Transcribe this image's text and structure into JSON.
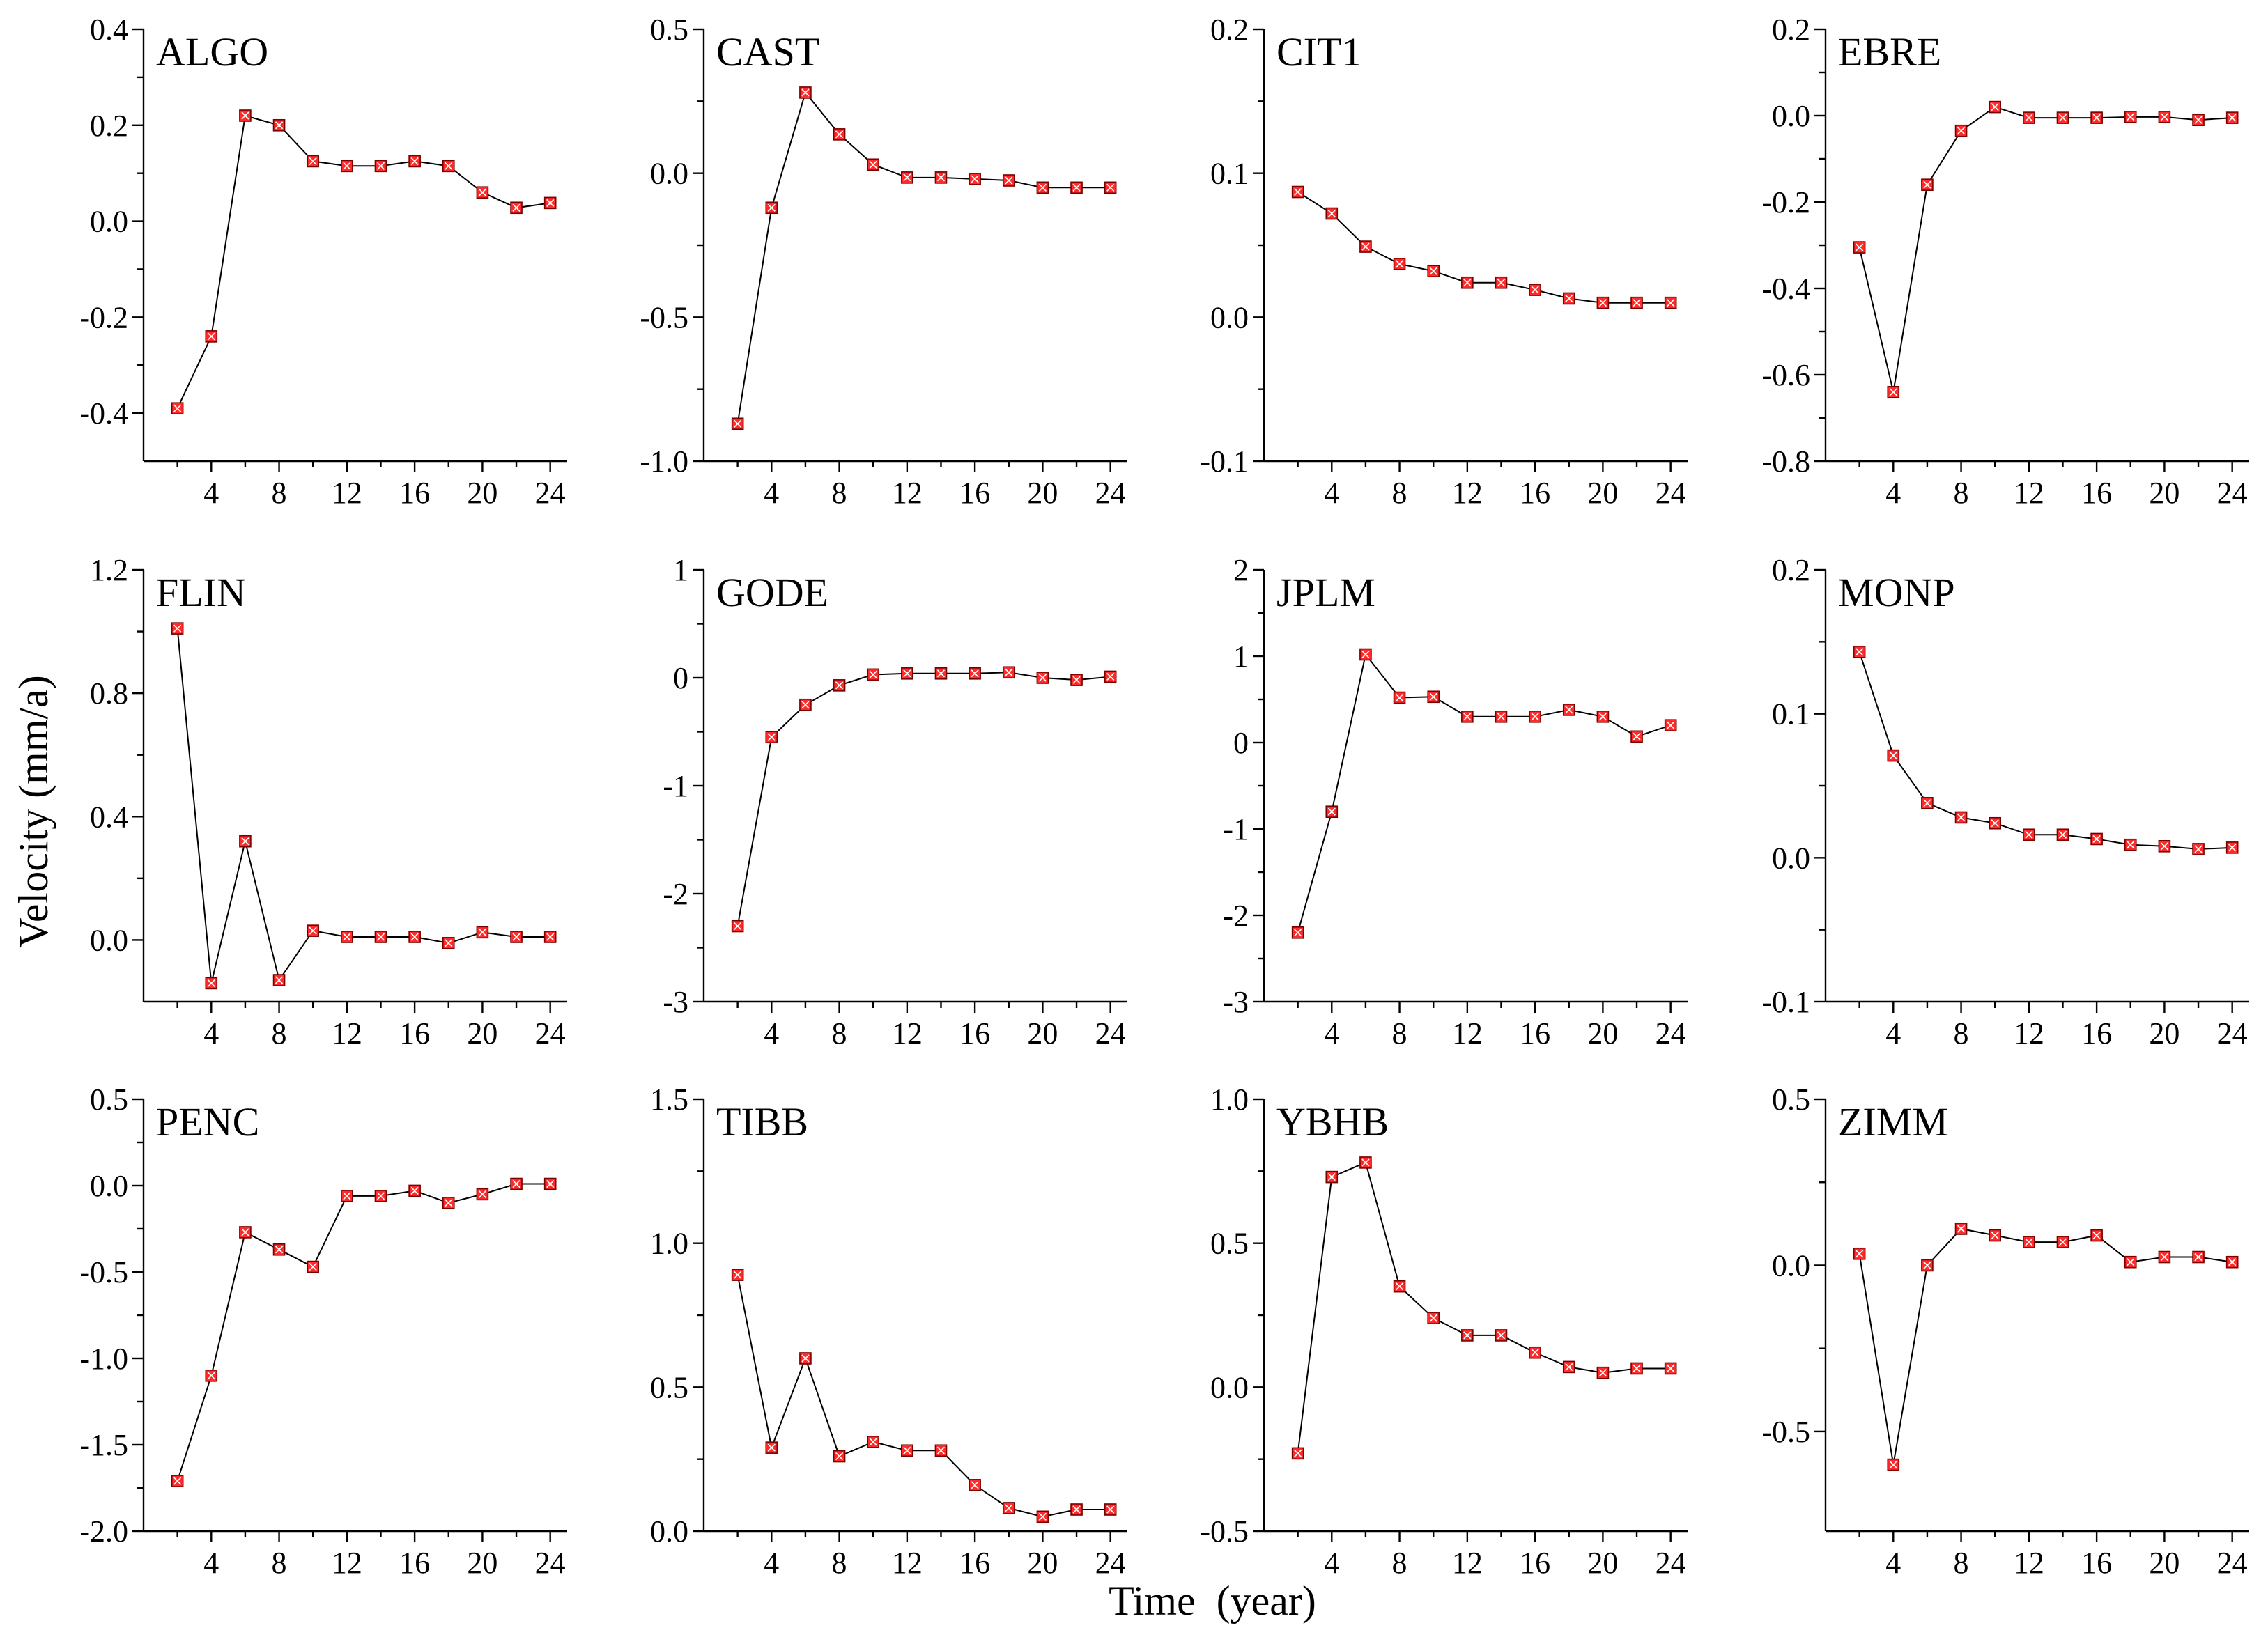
{
  "figure": {
    "ylabel": "Velocity (mm/a)",
    "xlabel": "Time  (year)"
  },
  "chart_data": [
    {
      "type": "line",
      "title": "ALGO",
      "x": [
        2,
        4,
        6,
        8,
        10,
        12,
        14,
        16,
        18,
        20,
        22,
        24
      ],
      "values": [
        -0.39,
        -0.24,
        0.22,
        0.2,
        0.125,
        0.115,
        0.115,
        0.125,
        0.115,
        0.06,
        0.028,
        0.038
      ],
      "ylim": [
        -0.5,
        0.4
      ],
      "yticks": [
        -0.4,
        -0.2,
        0.0,
        0.2,
        0.4
      ],
      "ytick_labels": [
        "-0.4",
        "-0.2",
        "0.0",
        "0.2",
        "0.4"
      ],
      "xlim": [
        0,
        25
      ],
      "xticks": [
        4,
        8,
        12,
        16,
        20,
        24
      ],
      "xtick_labels": [
        "4",
        "8",
        "12",
        "16",
        "20",
        "24"
      ]
    },
    {
      "type": "line",
      "title": "CAST",
      "x": [
        2,
        4,
        6,
        8,
        10,
        12,
        14,
        16,
        18,
        20,
        22,
        24
      ],
      "values": [
        -0.87,
        -0.12,
        0.28,
        0.135,
        0.03,
        -0.015,
        -0.015,
        -0.02,
        -0.025,
        -0.05,
        -0.05,
        -0.05
      ],
      "ylim": [
        -1.0,
        0.5
      ],
      "yticks": [
        -1.0,
        -0.5,
        0.0,
        0.5
      ],
      "ytick_labels": [
        "-1.0",
        "-0.5",
        "0.0",
        "0.5"
      ],
      "xlim": [
        0,
        25
      ],
      "xticks": [
        4,
        8,
        12,
        16,
        20,
        24
      ],
      "xtick_labels": [
        "4",
        "8",
        "12",
        "16",
        "20",
        "24"
      ]
    },
    {
      "type": "line",
      "title": "CIT1",
      "x": [
        2,
        4,
        6,
        8,
        10,
        12,
        14,
        16,
        18,
        20,
        22,
        24
      ],
      "values": [
        0.087,
        0.072,
        0.049,
        0.037,
        0.032,
        0.024,
        0.024,
        0.019,
        0.013,
        0.01,
        0.01,
        0.01
      ],
      "ylim": [
        -0.1,
        0.2
      ],
      "yticks": [
        -0.1,
        0.0,
        0.1,
        0.2
      ],
      "ytick_labels": [
        "-0.1",
        "0.0",
        "0.1",
        "0.2"
      ],
      "xlim": [
        0,
        25
      ],
      "xticks": [
        4,
        8,
        12,
        16,
        20,
        24
      ],
      "xtick_labels": [
        "4",
        "8",
        "12",
        "16",
        "20",
        "24"
      ]
    },
    {
      "type": "line",
      "title": "EBRE",
      "x": [
        2,
        4,
        6,
        8,
        10,
        12,
        14,
        16,
        18,
        20,
        22,
        24
      ],
      "values": [
        -0.305,
        -0.64,
        -0.16,
        -0.035,
        0.02,
        -0.005,
        -0.005,
        -0.005,
        -0.003,
        -0.003,
        -0.01,
        -0.005
      ],
      "ylim": [
        -0.8,
        0.2
      ],
      "yticks": [
        -0.8,
        -0.6,
        -0.4,
        -0.2,
        0.0,
        0.2
      ],
      "ytick_labels": [
        "-0.8",
        "-0.6",
        "-0.4",
        "-0.2",
        "0.0",
        "0.2"
      ],
      "xlim": [
        0,
        25
      ],
      "xticks": [
        4,
        8,
        12,
        16,
        20,
        24
      ],
      "xtick_labels": [
        "4",
        "8",
        "12",
        "16",
        "20",
        "24"
      ]
    },
    {
      "type": "line",
      "title": "FLIN",
      "x": [
        2,
        4,
        6,
        8,
        10,
        12,
        14,
        16,
        18,
        20,
        22,
        24
      ],
      "values": [
        1.01,
        -0.14,
        0.32,
        -0.13,
        0.03,
        0.01,
        0.01,
        0.01,
        -0.01,
        0.025,
        0.01,
        0.01
      ],
      "ylim": [
        -0.2,
        1.2
      ],
      "yticks": [
        0.0,
        0.4,
        0.8,
        1.2
      ],
      "ytick_labels": [
        "0.0",
        "0.4",
        "0.8",
        "1.2"
      ],
      "xlim": [
        0,
        25
      ],
      "xticks": [
        4,
        8,
        12,
        16,
        20,
        24
      ],
      "xtick_labels": [
        "4",
        "8",
        "12",
        "16",
        "20",
        "24"
      ]
    },
    {
      "type": "line",
      "title": "GODE",
      "x": [
        2,
        4,
        6,
        8,
        10,
        12,
        14,
        16,
        18,
        20,
        22,
        24
      ],
      "values": [
        -2.3,
        -0.55,
        -0.25,
        -0.07,
        0.03,
        0.04,
        0.04,
        0.04,
        0.05,
        0.0,
        -0.02,
        0.01
      ],
      "ylim": [
        -3,
        1
      ],
      "yticks": [
        -3,
        -2,
        -1,
        0,
        1
      ],
      "ytick_labels": [
        "-3",
        "-2",
        "-1",
        "0",
        "1"
      ],
      "xlim": [
        0,
        25
      ],
      "xticks": [
        4,
        8,
        12,
        16,
        20,
        24
      ],
      "xtick_labels": [
        "4",
        "8",
        "12",
        "16",
        "20",
        "24"
      ]
    },
    {
      "type": "line",
      "title": "JPLM",
      "x": [
        2,
        4,
        6,
        8,
        10,
        12,
        14,
        16,
        18,
        20,
        22,
        24
      ],
      "values": [
        -2.2,
        -0.8,
        1.02,
        0.52,
        0.53,
        0.3,
        0.3,
        0.3,
        0.38,
        0.3,
        0.07,
        0.2
      ],
      "ylim": [
        -3,
        2
      ],
      "yticks": [
        -3,
        -2,
        -1,
        0,
        1,
        2
      ],
      "ytick_labels": [
        "-3",
        "-2",
        "-1",
        "0",
        "1",
        "2"
      ],
      "xlim": [
        0,
        25
      ],
      "xticks": [
        4,
        8,
        12,
        16,
        20,
        24
      ],
      "xtick_labels": [
        "4",
        "8",
        "12",
        "16",
        "20",
        "24"
      ]
    },
    {
      "type": "line",
      "title": "MONP",
      "x": [
        2,
        4,
        6,
        8,
        10,
        12,
        14,
        16,
        18,
        20,
        22,
        24
      ],
      "values": [
        0.143,
        0.071,
        0.038,
        0.028,
        0.024,
        0.016,
        0.016,
        0.013,
        0.009,
        0.008,
        0.006,
        0.007
      ],
      "ylim": [
        -0.1,
        0.2
      ],
      "yticks": [
        -0.1,
        0.0,
        0.1,
        0.2
      ],
      "ytick_labels": [
        "-0.1",
        "0.0",
        "0.1",
        "0.2"
      ],
      "xlim": [
        0,
        25
      ],
      "xticks": [
        4,
        8,
        12,
        16,
        20,
        24
      ],
      "xtick_labels": [
        "4",
        "8",
        "12",
        "16",
        "20",
        "24"
      ]
    },
    {
      "type": "line",
      "title": "PENC",
      "x": [
        2,
        4,
        6,
        8,
        10,
        12,
        14,
        16,
        18,
        20,
        22,
        24
      ],
      "values": [
        -1.71,
        -1.1,
        -0.27,
        -0.37,
        -0.47,
        -0.06,
        -0.06,
        -0.03,
        -0.1,
        -0.05,
        0.01,
        0.01
      ],
      "ylim": [
        -2.0,
        0.5
      ],
      "yticks": [
        -2.0,
        -1.5,
        -1.0,
        -0.5,
        0.0,
        0.5
      ],
      "ytick_labels": [
        "-2.0",
        "-1.5",
        "-1.0",
        "-0.5",
        "0.0",
        "0.5"
      ],
      "xlim": [
        0,
        25
      ],
      "xticks": [
        4,
        8,
        12,
        16,
        20,
        24
      ],
      "xtick_labels": [
        "4",
        "8",
        "12",
        "16",
        "20",
        "24"
      ]
    },
    {
      "type": "line",
      "title": "TIBB",
      "x": [
        2,
        4,
        6,
        8,
        10,
        12,
        14,
        16,
        18,
        20,
        22,
        24
      ],
      "values": [
        0.89,
        0.29,
        0.6,
        0.26,
        0.31,
        0.28,
        0.28,
        0.16,
        0.08,
        0.05,
        0.075,
        0.075
      ],
      "ylim": [
        0.0,
        1.5
      ],
      "yticks": [
        0.0,
        0.5,
        1.0,
        1.5
      ],
      "ytick_labels": [
        "0.0",
        "0.5",
        "1.0",
        "1.5"
      ],
      "xlim": [
        0,
        25
      ],
      "xticks": [
        4,
        8,
        12,
        16,
        20,
        24
      ],
      "xtick_labels": [
        "4",
        "8",
        "12",
        "16",
        "20",
        "24"
      ]
    },
    {
      "type": "line",
      "title": "YBHB",
      "x": [
        2,
        4,
        6,
        8,
        10,
        12,
        14,
        16,
        18,
        20,
        22,
        24
      ],
      "values": [
        -0.23,
        0.73,
        0.78,
        0.35,
        0.24,
        0.18,
        0.18,
        0.12,
        0.07,
        0.05,
        0.065,
        0.065
      ],
      "ylim": [
        -0.5,
        1.0
      ],
      "yticks": [
        -0.5,
        0.0,
        0.5,
        1.0
      ],
      "ytick_labels": [
        "-0.5",
        "0.0",
        "0.5",
        "1.0"
      ],
      "xlim": [
        0,
        25
      ],
      "xticks": [
        4,
        8,
        12,
        16,
        20,
        24
      ],
      "xtick_labels": [
        "4",
        "8",
        "12",
        "16",
        "20",
        "24"
      ]
    },
    {
      "type": "line",
      "title": "ZIMM",
      "x": [
        2,
        4,
        6,
        8,
        10,
        12,
        14,
        16,
        18,
        20,
        22,
        24
      ],
      "values": [
        0.035,
        -0.6,
        0.0,
        0.11,
        0.09,
        0.07,
        0.07,
        0.09,
        0.01,
        0.025,
        0.025,
        0.01
      ],
      "ylim": [
        -0.8,
        0.5
      ],
      "yticks": [
        -0.5,
        0.0,
        0.5
      ],
      "ytick_labels": [
        "-0.5",
        "0.0",
        "0.5"
      ],
      "xlim": [
        0,
        25
      ],
      "xticks": [
        4,
        8,
        12,
        16,
        20,
        24
      ],
      "xtick_labels": [
        "4",
        "8",
        "12",
        "16",
        "20",
        "24"
      ]
    }
  ]
}
